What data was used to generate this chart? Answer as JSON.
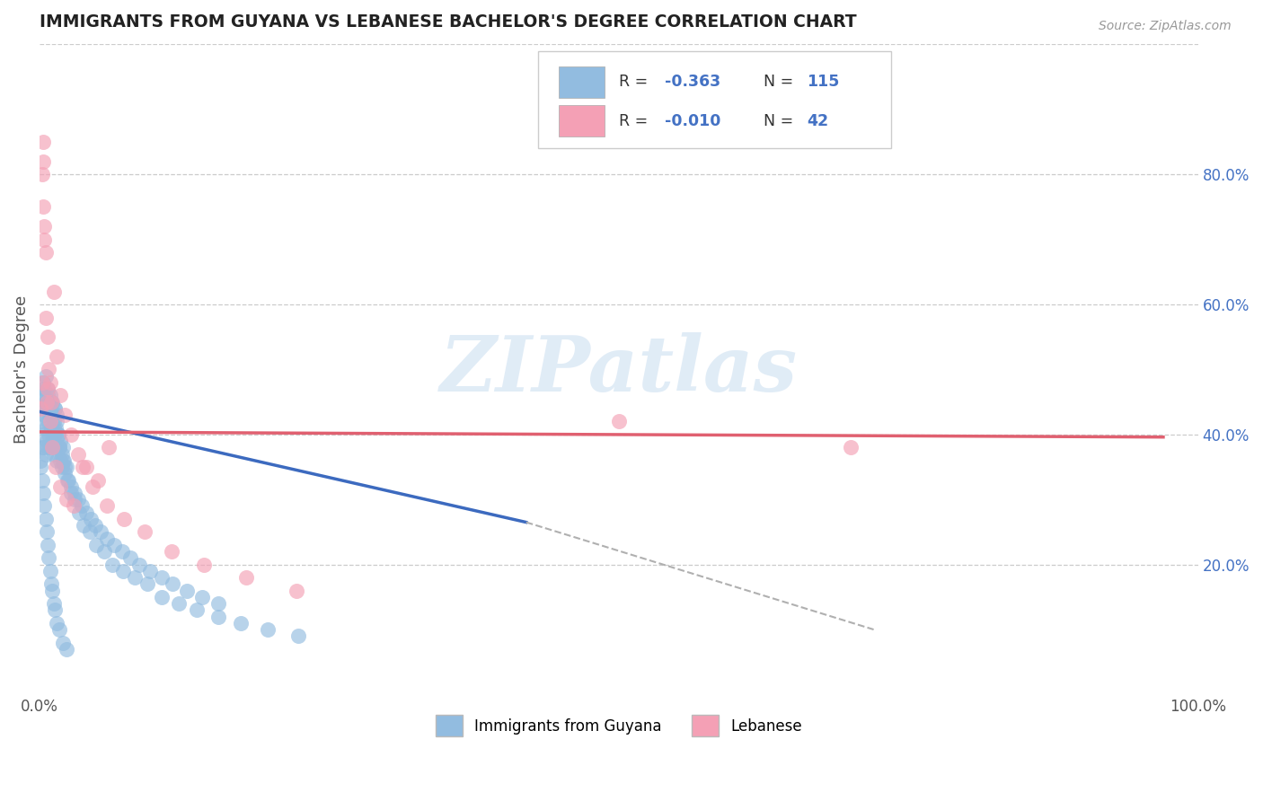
{
  "title": "IMMIGRANTS FROM GUYANA VS LEBANESE BACHELOR'S DEGREE CORRELATION CHART",
  "source": "Source: ZipAtlas.com",
  "ylabel": "Bachelor's Degree",
  "xlim": [
    0.0,
    1.0
  ],
  "ylim": [
    0.0,
    1.0
  ],
  "right_yticks": [
    0.2,
    0.4,
    0.6,
    0.8
  ],
  "right_yticklabels": [
    "20.0%",
    "40.0%",
    "60.0%",
    "80.0%"
  ],
  "legend_r1": "-0.363",
  "legend_n1": "115",
  "legend_r2": "-0.010",
  "legend_n2": "42",
  "series1_label": "Immigrants from Guyana",
  "series2_label": "Lebanese",
  "color1": "#92bce0",
  "color2": "#f4a0b5",
  "trendline1_color": "#3c6abf",
  "trendline2_color": "#e06070",
  "watermark_color": "#c8ddf0",
  "background_color": "#ffffff",
  "grid_color": "#cccccc",
  "title_color": "#222222",
  "legend_text_dark": "#333333",
  "legend_text_blue": "#4472c4",
  "blue_x": [
    0.001,
    0.002,
    0.002,
    0.003,
    0.003,
    0.003,
    0.004,
    0.004,
    0.004,
    0.005,
    0.005,
    0.005,
    0.006,
    0.006,
    0.007,
    0.007,
    0.007,
    0.008,
    0.008,
    0.009,
    0.009,
    0.01,
    0.01,
    0.011,
    0.011,
    0.012,
    0.012,
    0.013,
    0.013,
    0.014,
    0.015,
    0.015,
    0.016,
    0.017,
    0.018,
    0.019,
    0.02,
    0.021,
    0.022,
    0.023,
    0.025,
    0.027,
    0.03,
    0.033,
    0.036,
    0.04,
    0.044,
    0.048,
    0.053,
    0.058,
    0.064,
    0.071,
    0.078,
    0.086,
    0.095,
    0.105,
    0.115,
    0.127,
    0.14,
    0.154,
    0.003,
    0.004,
    0.005,
    0.006,
    0.007,
    0.008,
    0.009,
    0.01,
    0.011,
    0.012,
    0.013,
    0.014,
    0.015,
    0.016,
    0.017,
    0.018,
    0.019,
    0.02,
    0.022,
    0.024,
    0.027,
    0.03,
    0.034,
    0.038,
    0.043,
    0.049,
    0.056,
    0.063,
    0.072,
    0.082,
    0.093,
    0.105,
    0.12,
    0.136,
    0.154,
    0.174,
    0.197,
    0.223,
    0.001,
    0.002,
    0.003,
    0.004,
    0.005,
    0.006,
    0.007,
    0.008,
    0.009,
    0.01,
    0.011,
    0.012,
    0.013,
    0.015,
    0.017,
    0.02,
    0.023
  ],
  "blue_y": [
    0.36,
    0.42,
    0.38,
    0.44,
    0.4,
    0.46,
    0.38,
    0.43,
    0.47,
    0.41,
    0.37,
    0.45,
    0.39,
    0.44,
    0.42,
    0.38,
    0.46,
    0.4,
    0.44,
    0.38,
    0.43,
    0.41,
    0.45,
    0.39,
    0.43,
    0.37,
    0.41,
    0.4,
    0.44,
    0.38,
    0.42,
    0.36,
    0.4,
    0.38,
    0.36,
    0.35,
    0.38,
    0.36,
    0.34,
    0.35,
    0.33,
    0.32,
    0.31,
    0.3,
    0.29,
    0.28,
    0.27,
    0.26,
    0.25,
    0.24,
    0.23,
    0.22,
    0.21,
    0.2,
    0.19,
    0.18,
    0.17,
    0.16,
    0.15,
    0.14,
    0.48,
    0.46,
    0.49,
    0.45,
    0.47,
    0.44,
    0.46,
    0.43,
    0.45,
    0.42,
    0.44,
    0.41,
    0.43,
    0.4,
    0.38,
    0.39,
    0.37,
    0.36,
    0.35,
    0.33,
    0.31,
    0.3,
    0.28,
    0.26,
    0.25,
    0.23,
    0.22,
    0.2,
    0.19,
    0.18,
    0.17,
    0.15,
    0.14,
    0.13,
    0.12,
    0.11,
    0.1,
    0.09,
    0.35,
    0.33,
    0.31,
    0.29,
    0.27,
    0.25,
    0.23,
    0.21,
    0.19,
    0.17,
    0.16,
    0.14,
    0.13,
    0.11,
    0.1,
    0.08,
    0.07
  ],
  "pink_x": [
    0.001,
    0.002,
    0.003,
    0.003,
    0.004,
    0.005,
    0.006,
    0.007,
    0.008,
    0.009,
    0.01,
    0.012,
    0.015,
    0.018,
    0.022,
    0.027,
    0.033,
    0.04,
    0.05,
    0.06,
    0.002,
    0.003,
    0.004,
    0.005,
    0.007,
    0.009,
    0.011,
    0.014,
    0.018,
    0.023,
    0.029,
    0.037,
    0.046,
    0.058,
    0.073,
    0.091,
    0.114,
    0.142,
    0.178,
    0.222,
    0.5,
    0.7
  ],
  "pink_y": [
    0.44,
    0.8,
    0.75,
    0.82,
    0.72,
    0.68,
    0.45,
    0.55,
    0.5,
    0.48,
    0.45,
    0.62,
    0.52,
    0.46,
    0.43,
    0.4,
    0.37,
    0.35,
    0.33,
    0.38,
    0.48,
    0.85,
    0.7,
    0.58,
    0.47,
    0.42,
    0.38,
    0.35,
    0.32,
    0.3,
    0.29,
    0.35,
    0.32,
    0.29,
    0.27,
    0.25,
    0.22,
    0.2,
    0.18,
    0.16,
    0.42,
    0.38
  ],
  "trend1_x0": 0.0,
  "trend1_y0": 0.435,
  "trend1_x1": 0.42,
  "trend1_y1": 0.265,
  "trend1_dash_x0": 0.42,
  "trend1_dash_y0": 0.265,
  "trend1_dash_x1": 0.72,
  "trend1_dash_y1": 0.1,
  "trend2_x0": 0.0,
  "trend2_y0": 0.404,
  "trend2_x1": 0.97,
  "trend2_y1": 0.396
}
